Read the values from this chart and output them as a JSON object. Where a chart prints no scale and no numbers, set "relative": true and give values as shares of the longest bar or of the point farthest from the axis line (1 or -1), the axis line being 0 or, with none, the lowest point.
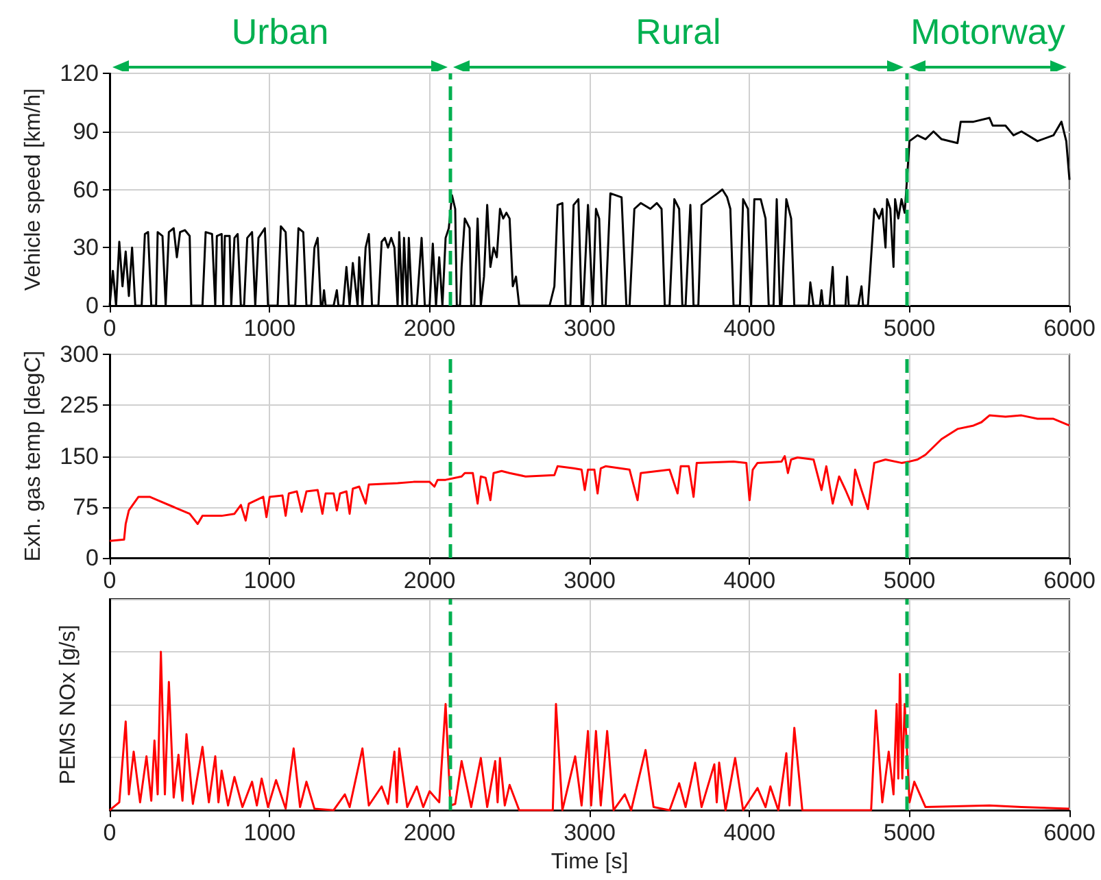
{
  "chart_data": [
    {
      "type": "line",
      "ylabel": "Vehicle speed [km/h]",
      "color": "#000000",
      "grid": true,
      "marker": "none",
      "line_style": "solid",
      "annotations": [
        "Urban",
        "Rural",
        "Motorway"
      ],
      "xlim": [
        0,
        6000
      ],
      "xticks": [
        0,
        1000,
        2000,
        3000,
        4000,
        5000,
        6000
      ],
      "ylim": [
        0,
        120
      ],
      "yticks": [
        0,
        30,
        60,
        90,
        120
      ],
      "ref_lines": [
        {
          "axis": "x",
          "value": 2130,
          "color": "#00b050",
          "line_style": "dashed"
        },
        {
          "axis": "x",
          "value": 4980,
          "color": "#00b050",
          "line_style": "dashed"
        }
      ],
      "x": [
        0,
        20,
        40,
        60,
        80,
        100,
        120,
        140,
        160,
        200,
        220,
        240,
        260,
        290,
        300,
        330,
        350,
        370,
        400,
        420,
        440,
        470,
        500,
        510,
        580,
        600,
        640,
        660,
        670,
        700,
        710,
        720,
        750,
        760,
        780,
        800,
        820,
        840,
        860,
        890,
        910,
        930,
        970,
        990,
        1050,
        1070,
        1100,
        1120,
        1160,
        1180,
        1210,
        1230,
        1260,
        1280,
        1300,
        1320,
        1330,
        1340,
        1350,
        1400,
        1420,
        1430,
        1460,
        1480,
        1500,
        1520,
        1550,
        1560,
        1580,
        1600,
        1620,
        1640,
        1680,
        1700,
        1720,
        1740,
        1760,
        1780,
        1800,
        1810,
        1830,
        1840,
        1860,
        1870,
        1890,
        1920,
        1950,
        1970,
        2000,
        2020,
        2040,
        2060,
        2080,
        2100,
        2120,
        2140,
        2160,
        2170,
        2190,
        2200,
        2220,
        2250,
        2260,
        2280,
        2300,
        2320,
        2340,
        2360,
        2380,
        2400,
        2420,
        2440,
        2460,
        2480,
        2500,
        2520,
        2540,
        2560,
        2750,
        2780,
        2800,
        2830,
        2850,
        2880,
        2900,
        2930,
        2950,
        2960,
        2990,
        3020,
        3040,
        3060,
        3080,
        3100,
        3130,
        3200,
        3230,
        3250,
        3280,
        3320,
        3380,
        3420,
        3450,
        3470,
        3500,
        3530,
        3560,
        3580,
        3600,
        3630,
        3650,
        3680,
        3700,
        3750,
        3800,
        3830,
        3860,
        3880,
        3900,
        3940,
        3960,
        3990,
        4010,
        4030,
        4070,
        4100,
        4120,
        4150,
        4170,
        4190,
        4200,
        4230,
        4260,
        4280,
        4370,
        4380,
        4400,
        4440,
        4450,
        4460,
        4500,
        4520,
        4530,
        4600,
        4610,
        4620,
        4680,
        4700,
        4710,
        4740,
        4780,
        4810,
        4830,
        4850,
        4860,
        4880,
        4900,
        4910,
        4930,
        4950,
        4970,
        4980,
        5000,
        5050,
        5100,
        5150,
        5200,
        5300,
        5320,
        5400,
        5500,
        5520,
        5600,
        5650,
        5700,
        5800,
        5900,
        5950,
        5980,
        6000
      ],
      "values": [
        0,
        18,
        0,
        33,
        10,
        28,
        5,
        30,
        0,
        0,
        37,
        38,
        0,
        0,
        38,
        36,
        0,
        38,
        40,
        25,
        38,
        39,
        36,
        0,
        0,
        38,
        37,
        0,
        36,
        37,
        0,
        36,
        36,
        0,
        35,
        37,
        0,
        0,
        35,
        38,
        0,
        35,
        40,
        0,
        0,
        41,
        38,
        0,
        0,
        40,
        38,
        0,
        0,
        30,
        35,
        0,
        0,
        8,
        0,
        0,
        8,
        0,
        0,
        20,
        0,
        22,
        0,
        25,
        0,
        30,
        37,
        0,
        0,
        33,
        35,
        30,
        35,
        30,
        0,
        38,
        0,
        35,
        0,
        35,
        0,
        0,
        35,
        0,
        0,
        32,
        0,
        25,
        0,
        35,
        40,
        57,
        50,
        0,
        0,
        20,
        45,
        40,
        0,
        0,
        45,
        0,
        15,
        52,
        20,
        30,
        25,
        50,
        45,
        48,
        45,
        10,
        15,
        0,
        0,
        10,
        52,
        53,
        0,
        0,
        52,
        55,
        0,
        0,
        52,
        0,
        50,
        45,
        0,
        0,
        58,
        56,
        0,
        0,
        50,
        53,
        50,
        53,
        50,
        0,
        0,
        55,
        50,
        0,
        0,
        52,
        0,
        0,
        52,
        55,
        58,
        60,
        56,
        50,
        0,
        0,
        55,
        50,
        0,
        55,
        55,
        45,
        0,
        0,
        55,
        0,
        0,
        55,
        45,
        0,
        0,
        12,
        0,
        0,
        8,
        0,
        0,
        20,
        0,
        0,
        15,
        0,
        0,
        10,
        0,
        0,
        50,
        45,
        50,
        30,
        55,
        50,
        20,
        55,
        45,
        55,
        48,
        60,
        85,
        88,
        86,
        90,
        86,
        84,
        95,
        95,
        97,
        93,
        93,
        88,
        90,
        85,
        88,
        95,
        85,
        65
      ]
    },
    {
      "type": "line",
      "ylabel": "Exh. gas temp [degC]",
      "color": "#ff0000",
      "grid": true,
      "marker": "none",
      "line_style": "solid",
      "xlim": [
        0,
        6000
      ],
      "xticks": [
        0,
        1000,
        2000,
        3000,
        4000,
        5000,
        6000
      ],
      "ylim": [
        0,
        300
      ],
      "yticks": [
        0,
        75,
        150,
        225,
        300
      ],
      "ref_lines": [
        {
          "axis": "x",
          "value": 2130,
          "color": "#00b050",
          "line_style": "dashed"
        },
        {
          "axis": "x",
          "value": 4980,
          "color": "#00b050",
          "line_style": "dashed"
        }
      ],
      "x": [
        0,
        90,
        100,
        120,
        180,
        250,
        300,
        400,
        500,
        550,
        580,
        700,
        780,
        820,
        850,
        870,
        960,
        980,
        1000,
        1080,
        1100,
        1120,
        1170,
        1200,
        1230,
        1300,
        1330,
        1350,
        1400,
        1420,
        1440,
        1480,
        1500,
        1520,
        1560,
        1600,
        1620,
        1800,
        1900,
        2000,
        2030,
        2050,
        2100,
        2200,
        2220,
        2270,
        2300,
        2320,
        2350,
        2380,
        2400,
        2450,
        2500,
        2600,
        2780,
        2800,
        2900,
        2950,
        2970,
        2990,
        3030,
        3050,
        3070,
        3100,
        3250,
        3300,
        3320,
        3500,
        3550,
        3570,
        3620,
        3650,
        3670,
        3900,
        3980,
        4000,
        4020,
        4050,
        4200,
        4220,
        4240,
        4260,
        4300,
        4400,
        4450,
        4480,
        4520,
        4560,
        4600,
        4640,
        4660,
        4700,
        4740,
        4780,
        4850,
        4950,
        5000,
        5050,
        5100,
        5200,
        5300,
        5400,
        5450,
        5500,
        5600,
        5700,
        5800,
        5900,
        6000
      ],
      "values": [
        25,
        27,
        50,
        70,
        90,
        90,
        85,
        75,
        65,
        50,
        62,
        62,
        65,
        78,
        55,
        80,
        90,
        60,
        90,
        92,
        62,
        95,
        98,
        68,
        98,
        100,
        65,
        95,
        95,
        70,
        95,
        98,
        65,
        102,
        105,
        80,
        108,
        110,
        112,
        112,
        105,
        115,
        115,
        120,
        125,
        125,
        80,
        120,
        118,
        85,
        125,
        128,
        125,
        120,
        122,
        135,
        132,
        130,
        100,
        130,
        130,
        95,
        132,
        135,
        130,
        85,
        125,
        130,
        95,
        135,
        135,
        90,
        140,
        142,
        140,
        85,
        130,
        140,
        142,
        150,
        125,
        145,
        148,
        145,
        100,
        135,
        80,
        120,
        100,
        78,
        130,
        100,
        72,
        140,
        145,
        140,
        142,
        145,
        152,
        175,
        190,
        195,
        200,
        210,
        208,
        210,
        205,
        205,
        195
      ]
    },
    {
      "type": "line",
      "ylabel": "PEMS NOx [g/s]",
      "xlabel": "Time [s]",
      "color": "#ff0000",
      "grid": true,
      "marker": "none",
      "line_style": "solid",
      "relative": true,
      "xlim": [
        0,
        6000
      ],
      "xticks": [
        0,
        1000,
        2000,
        3000,
        4000,
        5000,
        6000
      ],
      "ref_lines": [
        {
          "axis": "x",
          "value": 2130,
          "color": "#00b050",
          "line_style": "dashed"
        },
        {
          "axis": "x",
          "value": 4980,
          "color": "#00b050",
          "line_style": "dashed"
        }
      ],
      "x": [
        0,
        60,
        100,
        120,
        150,
        190,
        230,
        260,
        280,
        300,
        320,
        345,
        370,
        400,
        430,
        455,
        480,
        520,
        580,
        620,
        660,
        680,
        700,
        740,
        780,
        830,
        890,
        920,
        950,
        990,
        1040,
        1100,
        1150,
        1190,
        1230,
        1280,
        1400,
        1470,
        1500,
        1580,
        1620,
        1700,
        1740,
        1780,
        1795,
        1810,
        1860,
        1920,
        1960,
        2000,
        2060,
        2100,
        2130,
        2160,
        2200,
        2260,
        2320,
        2360,
        2410,
        2425,
        2440,
        2470,
        2500,
        2560,
        2770,
        2790,
        2830,
        2910,
        2950,
        2990,
        3010,
        3040,
        3070,
        3110,
        3150,
        3220,
        3260,
        3350,
        3400,
        3500,
        3560,
        3600,
        3660,
        3700,
        3780,
        3795,
        3810,
        3850,
        3910,
        3960,
        4050,
        4100,
        4130,
        4180,
        4230,
        4250,
        4280,
        4330,
        4600,
        4760,
        4790,
        4830,
        4870,
        4900,
        4920,
        4930,
        4940,
        4955,
        4970,
        5000,
        5030,
        5100,
        5500,
        5700,
        6000
      ],
      "values": [
        0,
        0.05,
        0.56,
        0.1,
        0.37,
        0.05,
        0.34,
        0.06,
        0.44,
        0.1,
        1.0,
        0.1,
        0.81,
        0.08,
        0.35,
        0.06,
        0.48,
        0.04,
        0.4,
        0.05,
        0.34,
        0.05,
        0.25,
        0.03,
        0.21,
        0.02,
        0.18,
        0.03,
        0.2,
        0.02,
        0.19,
        0.01,
        0.39,
        0.02,
        0.18,
        0.01,
        0,
        0.1,
        0.02,
        0.39,
        0.03,
        0.15,
        0.04,
        0.37,
        0.05,
        0.39,
        0.02,
        0.15,
        0.02,
        0.12,
        0.05,
        0.67,
        0.03,
        0.04,
        0.31,
        0.02,
        0.33,
        0.02,
        0.31,
        0.05,
        0.33,
        0.03,
        0.16,
        0,
        0,
        0.67,
        0,
        0.34,
        0.03,
        0.5,
        0.03,
        0.5,
        0.03,
        0.5,
        0,
        0.1,
        0,
        0.38,
        0.02,
        0,
        0.17,
        0.02,
        0.3,
        0.02,
        0.29,
        0.05,
        0.3,
        0,
        0.33,
        0,
        0.14,
        0.02,
        0.15,
        0,
        0.36,
        0.03,
        0.52,
        0,
        0,
        0,
        0.63,
        0.05,
        0.37,
        0.1,
        0.67,
        0.2,
        0.86,
        0.2,
        0.67,
        0.05,
        0.18,
        0.02,
        0.03,
        0.02,
        0.01
      ]
    }
  ]
}
